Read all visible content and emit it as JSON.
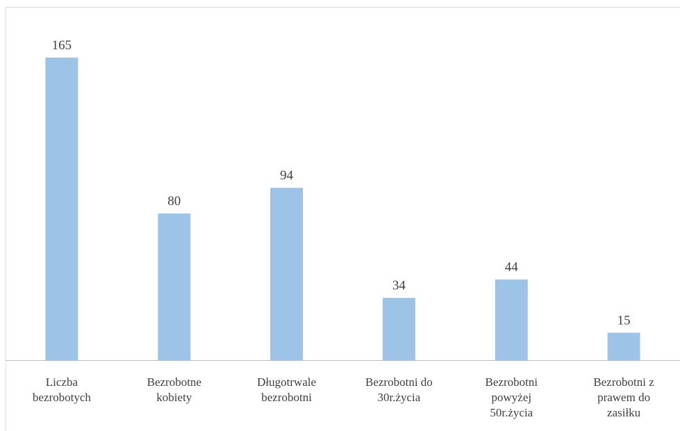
{
  "chart_data": {
    "type": "bar",
    "categories": [
      [
        "Liczba",
        "bezrobotych"
      ],
      [
        "Bezrobotne",
        "kobiety"
      ],
      [
        "Długotrwale",
        "bezrobotni"
      ],
      [
        "Bezrobotni do",
        "30r.życia"
      ],
      [
        "Bezrobotni",
        "powyżej",
        "50r.życia"
      ],
      [
        "Bezrobotni z",
        "prawem do",
        "zasiłku"
      ]
    ],
    "values": [
      165,
      80,
      94,
      34,
      44,
      15
    ],
    "data_labels": [
      "165",
      "80",
      "94",
      "34",
      "44",
      "15"
    ],
    "title": "",
    "xlabel": "",
    "ylabel": "",
    "ylim": [
      0,
      180
    ],
    "grid": false,
    "legend": "none",
    "colors": {
      "bar": "#9dc3e6",
      "axis": "#bfbfbf",
      "text": "#404040"
    }
  }
}
